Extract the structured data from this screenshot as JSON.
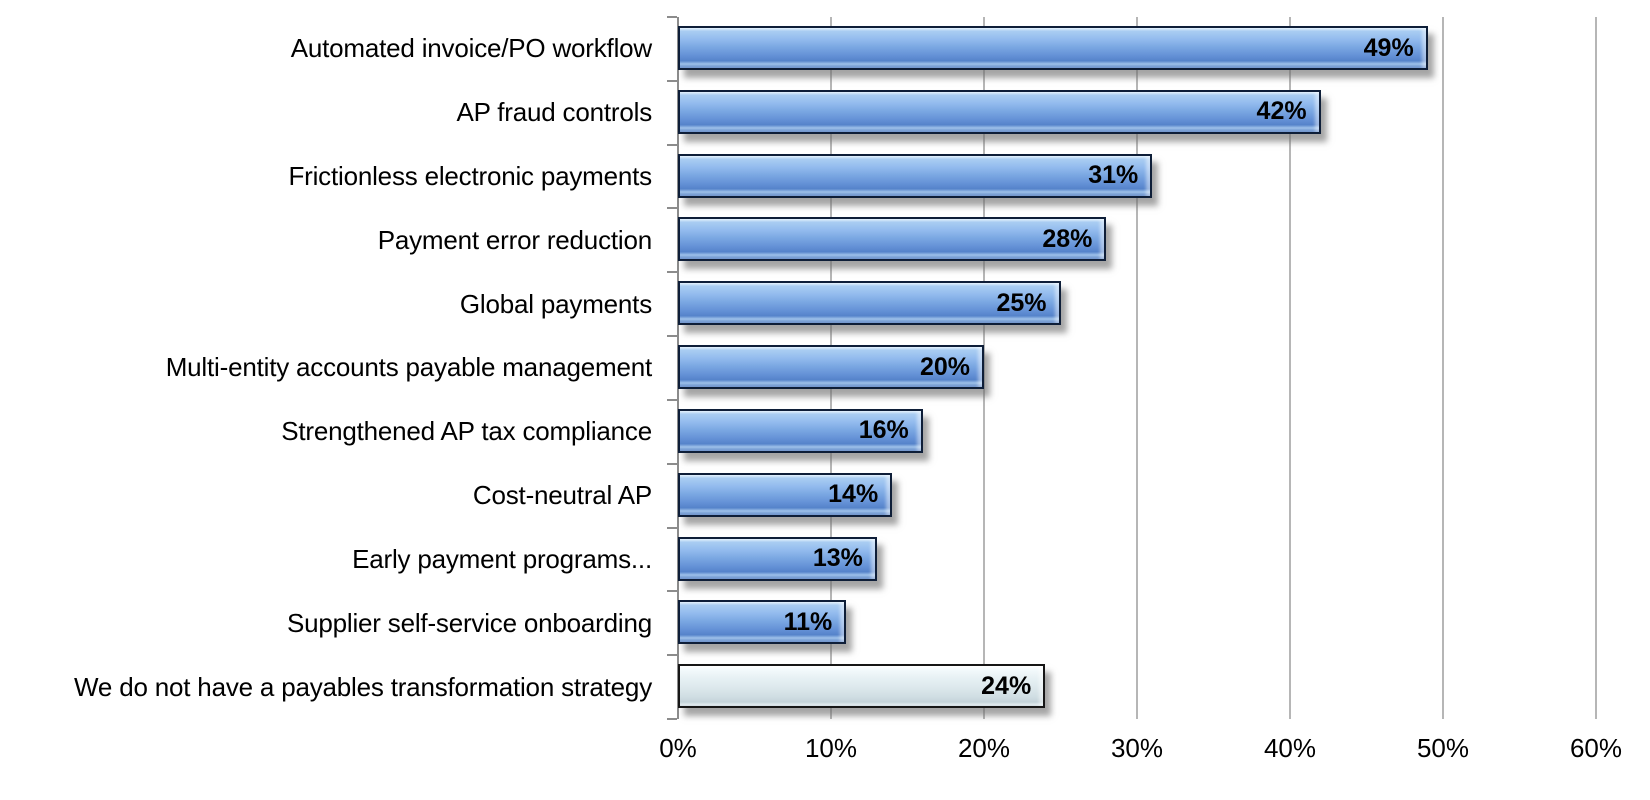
{
  "chart_data": {
    "type": "bar",
    "orientation": "horizontal",
    "title": "",
    "xlabel": "",
    "ylabel": "",
    "categories": [
      "Automated invoice/PO workflow",
      "AP fraud controls",
      "Frictionless electronic payments",
      "Payment error reduction",
      "Global payments",
      "Multi-entity accounts payable management",
      "Strengthened AP tax compliance",
      "Cost-neutral AP",
      "Early payment programs...",
      "Supplier self-service onboarding",
      "We do not have a payables transformation strategy"
    ],
    "values": [
      49,
      42,
      31,
      28,
      25,
      20,
      16,
      14,
      13,
      11,
      24
    ],
    "data_labels": [
      "49%",
      "42%",
      "31%",
      "28%",
      "25%",
      "20%",
      "16%",
      "14%",
      "13%",
      "11%",
      "24%"
    ],
    "bar_styles": [
      "blue",
      "blue",
      "blue",
      "blue",
      "blue",
      "blue",
      "blue",
      "blue",
      "blue",
      "blue",
      "gray"
    ],
    "xlim": [
      0,
      60
    ],
    "x_ticks": [
      "0%",
      "10%",
      "20%",
      "30%",
      "40%",
      "50%",
      "60%"
    ],
    "grid": "vertical",
    "legend": "none",
    "colors": {
      "blue_bar_light": "#a9cdf2",
      "blue_bar_dark": "#5583ca",
      "blue_bar_highlight": "#ddeefc",
      "blue_bar_border": "#0e1e38",
      "gray_bar_light": "#f4fafc",
      "gray_bar_dark": "#c4d3d9",
      "gray_bar_border": "#161616",
      "gridline": "#b6b6b6",
      "axis": "#8c8c8c",
      "label_text": "#000000",
      "background": "#ffffff"
    }
  }
}
